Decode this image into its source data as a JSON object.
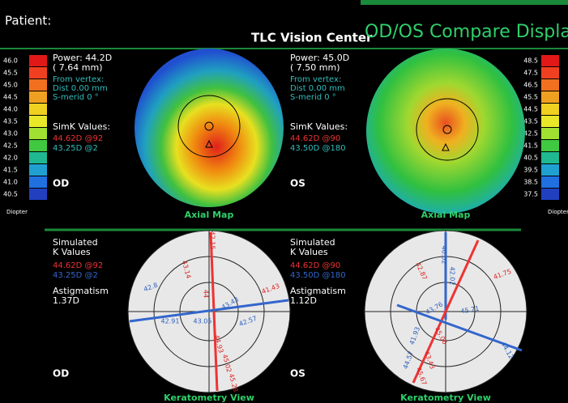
{
  "header": {
    "patient": "Patient:",
    "center": "TLC Vision Center",
    "title": "OD/OS Compare Display"
  },
  "scales": [
    {
      "values": [
        "46.0",
        "45.5",
        "45.0",
        "44.5",
        "44.0",
        "43.5",
        "43.0",
        "42.5",
        "42.0",
        "41.5",
        "41.0",
        "40.5"
      ],
      "unit": "Diopter"
    },
    {
      "values": [
        "48.5",
        "47.5",
        "46.5",
        "45.5",
        "44.5",
        "43.5",
        "42.5",
        "41.5",
        "40.5",
        "39.5",
        "38.5",
        "37.5"
      ],
      "unit": "Diopter"
    }
  ],
  "panels": [
    {
      "power": "Power: 44.2D",
      "radius": "( 7.64 mm)",
      "from_vertex": "From vertex:",
      "dist": "Dist  0.00 mm",
      "s_merid": "S-merid    0 °",
      "simk_heading": "SimK Values:",
      "simk": [
        "44.62D @92",
        "43.25D @2"
      ],
      "eye": "OD",
      "map_label": "Axial Map",
      "sim_heading": [
        "Simulated",
        "K Values"
      ],
      "astig_heading": "Astigmatism",
      "astig": "1.37D",
      "view_label": "Keratometry View",
      "kerato_labels": [
        "42.15",
        "43.14",
        "44",
        "42.8",
        "42.91",
        "43.05",
        "43.43",
        "42.57",
        "41.43",
        "44.93",
        "45.02",
        "45.28"
      ]
    },
    {
      "power": "Power: 45.0D",
      "radius": "( 7.50 mm)",
      "from_vertex": "From vertex:",
      "dist": "Dist  0.00 mm",
      "s_merid": "S-merid    0 °",
      "simk_heading": "SimK Values:",
      "simk": [
        "44.62D @90",
        "43.50D @180"
      ],
      "eye": "OS",
      "map_label": "Axial Map",
      "sim_heading": [
        "Simulated",
        "K Values"
      ],
      "astig_heading": "Astigmatism",
      "astig": "1.12D",
      "view_label": "Keratometry View",
      "kerato_labels": [
        "40.02",
        "42.02",
        "42.87",
        "41.75",
        "43.76",
        "45.71",
        "41.93",
        "44.57",
        "45.06",
        "43.43",
        "45.67",
        "44.12"
      ]
    }
  ]
}
